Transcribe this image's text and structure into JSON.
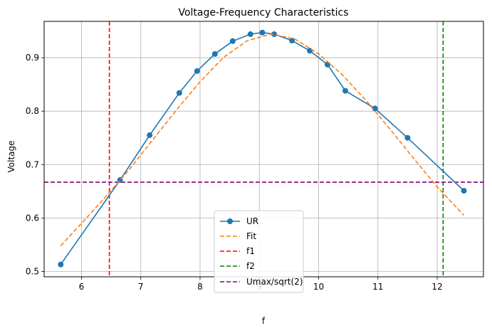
{
  "chart_data": {
    "type": "line",
    "title": "Voltage-Frequency Characteristics",
    "xlabel": "f",
    "ylabel": "Voltage",
    "xlim": [
      5.37,
      12.78
    ],
    "ylim": [
      0.49,
      0.968
    ],
    "xticks": [
      6,
      7,
      8,
      9,
      10,
      11,
      12
    ],
    "yticks": [
      0.5,
      0.6,
      0.7,
      0.8,
      0.9
    ],
    "grid": true,
    "legend_position": "lower-center",
    "series": [
      {
        "name": "UR",
        "kind": "line-markers",
        "color": "#1f77b4",
        "x": [
          5.65,
          6.65,
          7.15,
          7.65,
          7.95,
          8.25,
          8.55,
          8.85,
          9.05,
          9.25,
          9.55,
          9.85,
          10.15,
          10.45,
          10.95,
          11.5,
          12.45
        ],
        "y": [
          0.513,
          0.671,
          0.755,
          0.834,
          0.875,
          0.907,
          0.931,
          0.944,
          0.947,
          0.944,
          0.932,
          0.913,
          0.887,
          0.838,
          0.805,
          0.75,
          0.651
        ]
      },
      {
        "name": "Fit",
        "kind": "dashed",
        "color": "#ff7f0e",
        "x": [
          5.65,
          6.0,
          6.4,
          6.8,
          7.2,
          7.6,
          8.0,
          8.4,
          8.8,
          9.2,
          9.6,
          10.0,
          10.4,
          10.8,
          11.2,
          11.6,
          12.0,
          12.45
        ],
        "y": [
          0.548,
          0.59,
          0.639,
          0.69,
          0.746,
          0.802,
          0.855,
          0.901,
          0.932,
          0.944,
          0.935,
          0.907,
          0.868,
          0.82,
          0.767,
          0.712,
          0.658,
          0.605
        ]
      },
      {
        "name": "f1",
        "kind": "vline",
        "color": "#ff0000",
        "x": 6.47
      },
      {
        "name": "f2",
        "kind": "vline",
        "color": "#008000",
        "x": 12.1
      },
      {
        "name": "Umax/sqrt(2)",
        "kind": "hline",
        "color": "#800080",
        "y": 0.667
      }
    ]
  }
}
